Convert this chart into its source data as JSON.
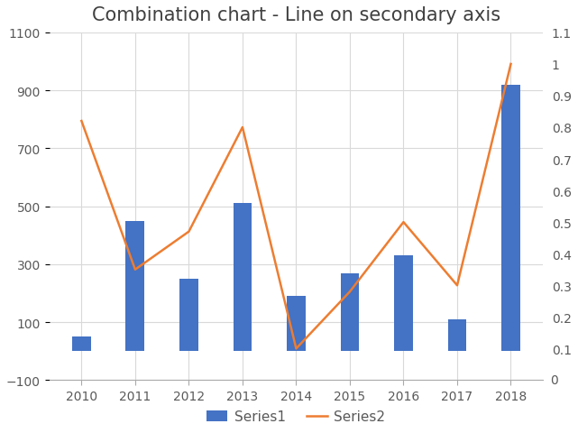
{
  "title": "Combination chart - Line on secondary axis",
  "categories": [
    "2010",
    "2011",
    "2012",
    "2013",
    "2014",
    "2015",
    "2016",
    "2017",
    "2018"
  ],
  "series1": [
    50,
    450,
    250,
    510,
    190,
    270,
    330,
    110,
    920
  ],
  "series2": [
    0.82,
    0.35,
    0.47,
    0.8,
    0.1,
    0.28,
    0.5,
    0.3,
    1.0
  ],
  "bar_color": "#4472C4",
  "line_color": "#ED7D31",
  "primary_ylim": [
    -100,
    1100
  ],
  "primary_yticks": [
    -100,
    100,
    300,
    500,
    700,
    900,
    1100
  ],
  "secondary_ylim": [
    0,
    1.1
  ],
  "secondary_yticks": [
    0.1,
    0.2,
    0.3,
    0.4,
    0.5,
    0.6,
    0.7,
    0.8,
    0.9,
    1.0,
    1.1
  ],
  "secondary_ytick_labels": [
    "0.1",
    "0.2",
    "0.3",
    "0.4",
    "0.5",
    "0.6",
    "0.7",
    "0.8",
    "0.9",
    "1",
    "1.1"
  ],
  "legend_labels": [
    "Series1",
    "Series2"
  ],
  "background_color": "#ffffff",
  "title_fontsize": 15,
  "tick_label_color": "#595959",
  "grid_color": "#D9D9D9",
  "grid_linewidth": 0.8,
  "line_linewidth": 1.8,
  "bar_width": 0.35
}
